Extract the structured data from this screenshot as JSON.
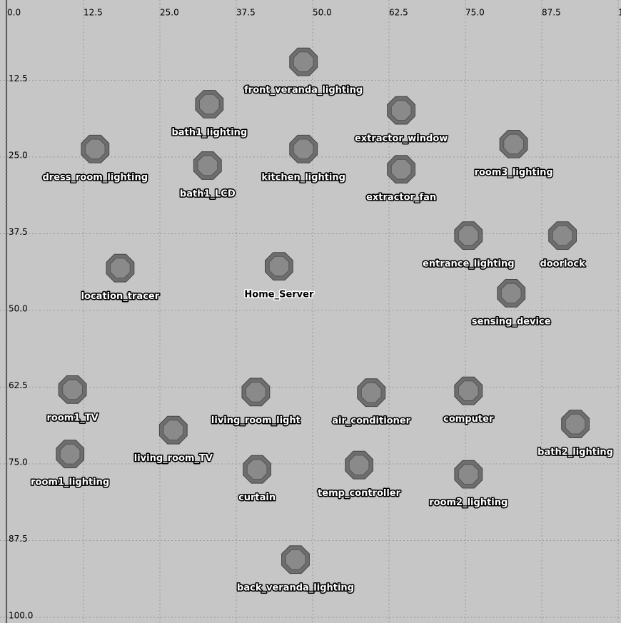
{
  "chart_data": {
    "type": "scatter",
    "labels": [
      "front_veranda_lighting",
      "bath1_lighting",
      "extractor_window",
      "dress_room_lighting",
      "bath1_LCD",
      "kitchen_lighting",
      "extractor_fan",
      "room3_lighting",
      "entrance_lighting",
      "doorlock",
      "location_tracer",
      "Home_Server",
      "sensing_device",
      "room1_TV",
      "living_room_light",
      "air_conditioner",
      "computer",
      "bath2_lighting",
      "living_room_TV",
      "room1_lighting",
      "curtain",
      "temp_controller",
      "room2_lighting",
      "back_veranda_lighting"
    ],
    "x": [
      48.5,
      33.1,
      64.5,
      14.4,
      32.8,
      48.5,
      64.5,
      82.9,
      75.5,
      90.9,
      18.5,
      44.5,
      82.5,
      10.7,
      40.7,
      59.6,
      75.5,
      93.0,
      27.2,
      10.3,
      40.9,
      57.6,
      75.5,
      47.2
    ],
    "y": [
      9.5,
      16.4,
      17.4,
      23.7,
      26.4,
      23.7,
      27.0,
      22.9,
      37.8,
      37.8,
      43.1,
      42.8,
      47.2,
      62.9,
      63.3,
      63.4,
      63.1,
      68.5,
      69.5,
      73.4,
      75.9,
      75.2,
      76.7,
      90.6
    ],
    "label_colors": [
      "#fff",
      "#fff",
      "#fff",
      "#fff",
      "#fff",
      "#fff",
      "#fff",
      "#fff",
      "#fff",
      "#fff",
      "#fff",
      "#000",
      "#fff",
      "#fff",
      "#fff",
      "#fff",
      "#fff",
      "#fff",
      "#fff",
      "#fff",
      "#fff",
      "#fff",
      "#fff",
      "#fff"
    ],
    "color": "#8a8a8a",
    "xlim": [
      0,
      100
    ],
    "ylim": [
      0,
      100
    ],
    "xticks": [
      {
        "value": 0,
        "label": "0.0"
      },
      {
        "value": 12.5,
        "label": "12.5"
      },
      {
        "value": 25,
        "label": "25.0"
      },
      {
        "value": 37.5,
        "label": "37.5"
      },
      {
        "value": 50,
        "label": "50.0"
      },
      {
        "value": 62.5,
        "label": "62.5"
      },
      {
        "value": 75,
        "label": "75.0"
      },
      {
        "value": 87.5,
        "label": "87.5"
      },
      {
        "value": 100,
        "label": "100.0"
      }
    ],
    "yticks": [
      {
        "value": 12.5,
        "label": "12.5"
      },
      {
        "value": 25,
        "label": "25.0"
      },
      {
        "value": 37.5,
        "label": "37.5"
      },
      {
        "value": 50,
        "label": "50.0"
      },
      {
        "value": 62.5,
        "label": "62.5"
      },
      {
        "value": 75,
        "label": "75.0"
      },
      {
        "value": 87.5,
        "label": "87.5"
      },
      {
        "value": 100,
        "label": "100.0"
      }
    ],
    "grid": true
  }
}
